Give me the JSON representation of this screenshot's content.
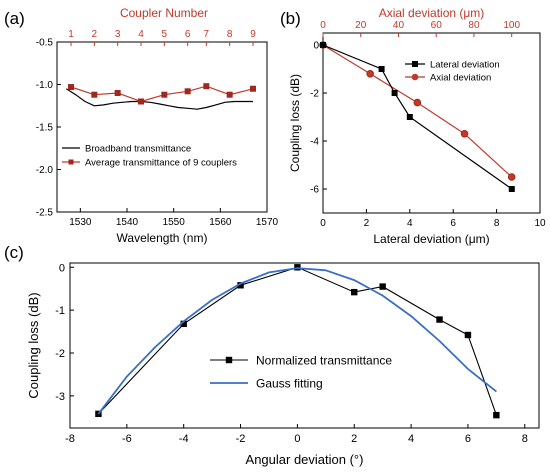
{
  "colors": {
    "black": "#000000",
    "red": "#c0392b",
    "darkred": "#a0281c",
    "blue": "#3a6fc4"
  },
  "chart_data": [
    {
      "panel": "(a)",
      "type": "line",
      "xlabel": "Wavelength (nm)",
      "ylabel": "",
      "xlim": [
        1525,
        1570
      ],
      "ylim": [
        -2.5,
        -0.5
      ],
      "xticks": [
        "1530",
        "1540",
        "1550",
        "1560",
        "1570"
      ],
      "yticks": [
        "-0.5",
        "-1.0",
        "-1.5",
        "-2.0",
        "-2.5"
      ],
      "top_axis_label": "Coupler Number",
      "top_xticks": [
        "1",
        "2",
        "3",
        "4",
        "5",
        "6",
        "7",
        "8",
        "9"
      ],
      "series": [
        {
          "name": "Broadband transmittance",
          "x": [
            1527,
            1529,
            1531,
            1533,
            1535,
            1537,
            1539,
            1541,
            1543,
            1545,
            1547,
            1549,
            1551,
            1553,
            1555,
            1557,
            1559,
            1561,
            1563,
            1565,
            1567
          ],
          "values": [
            -1.05,
            -1.12,
            -1.2,
            -1.25,
            -1.24,
            -1.22,
            -1.21,
            -1.2,
            -1.2,
            -1.21,
            -1.23,
            -1.25,
            -1.27,
            -1.28,
            -1.29,
            -1.27,
            -1.24,
            -1.21,
            -1.2,
            -1.2,
            -1.2
          ]
        },
        {
          "name": "Average transmittance of 9 couplers",
          "x": [
            1528,
            1533,
            1538,
            1543,
            1548,
            1553,
            1557,
            1562,
            1567
          ],
          "values": [
            -1.03,
            -1.12,
            -1.1,
            -1.2,
            -1.12,
            -1.08,
            -1.02,
            -1.12,
            -1.05
          ]
        }
      ]
    },
    {
      "panel": "(b)",
      "type": "line",
      "xlabel": "Lateral deviation (μm)",
      "ylabel": "Coupling loss (dB)",
      "xlim": [
        0,
        10
      ],
      "ylim": [
        -7,
        0.5
      ],
      "xticks": [
        "0",
        "2",
        "4",
        "6",
        "8",
        "10"
      ],
      "yticks": [
        "0",
        "-2",
        "-4",
        "-6"
      ],
      "top_axis_label": "Axial deviation (μm)",
      "top_xlim": [
        0,
        115
      ],
      "top_xticks": [
        "0",
        "20",
        "40",
        "60",
        "80",
        "100"
      ],
      "series": [
        {
          "name": "Lateral deviation",
          "x": [
            0,
            2.7,
            3.3,
            4.0,
            8.7
          ],
          "values": [
            0,
            -1.0,
            -2.0,
            -3.0,
            -6.0
          ]
        },
        {
          "name": "Axial deviation",
          "x_axial": [
            0,
            25,
            50,
            75,
            100
          ],
          "values": [
            0,
            -1.2,
            -2.4,
            -3.7,
            -5.5
          ]
        }
      ]
    },
    {
      "panel": "(c)",
      "type": "line",
      "xlabel": "Angular deviation (°)",
      "ylabel": "Coupling loss (dB)",
      "xlim": [
        -8,
        8.5
      ],
      "ylim": [
        -3.75,
        0.1
      ],
      "xticks": [
        "-8",
        "-6",
        "-4",
        "-2",
        "0",
        "2",
        "4",
        "6",
        "8"
      ],
      "yticks": [
        "0",
        "-1",
        "-2",
        "-3"
      ],
      "series": [
        {
          "name": "Normalized transmittance",
          "x": [
            -7,
            -4,
            -2,
            0,
            2,
            3,
            5,
            6,
            7
          ],
          "values": [
            -3.42,
            -1.32,
            -0.42,
            0,
            -0.58,
            -0.45,
            -1.22,
            -1.58,
            -3.45
          ]
        },
        {
          "name": "Gauss fitting",
          "x": [
            -7,
            -6,
            -5,
            -4,
            -3,
            -2,
            -1,
            0,
            1,
            2,
            3,
            4,
            5,
            6,
            7
          ],
          "values": [
            -3.42,
            -2.55,
            -1.86,
            -1.26,
            -0.76,
            -0.38,
            -0.12,
            -0.02,
            -0.07,
            -0.3,
            -0.66,
            -1.14,
            -1.72,
            -2.37,
            -2.9
          ]
        }
      ]
    }
  ]
}
